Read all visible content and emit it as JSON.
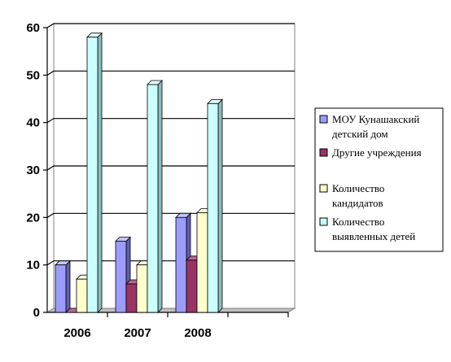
{
  "chart_data": {
    "type": "bar",
    "categories": [
      "2006",
      "2007",
      "2008"
    ],
    "series": [
      {
        "name": "МОУ Кунашакский детский дом",
        "legend_lines": [
          "МОУ Кунашакский",
          "детский дом"
        ],
        "values": [
          10,
          15,
          20
        ],
        "color": "#9c9cff",
        "side": "#5f5fb3",
        "top": "#c4c4ff"
      },
      {
        "name": "Другие учреждения",
        "legend_lines": [
          "Другие учреждения"
        ],
        "values": [
          0,
          6,
          11
        ],
        "color": "#993366",
        "side": "#5e1f3f",
        "top": "#b86690"
      },
      {
        "name": "Количество кандидатов",
        "legend_lines": [
          "Количество",
          "кандидатов"
        ],
        "values": [
          7,
          10,
          21
        ],
        "color": "#ffffcc",
        "side": "#bdbd8a",
        "top": "#ffffe6"
      },
      {
        "name": "Количество выявленных детей",
        "legend_lines": [
          "Количество",
          "выявленных детей"
        ],
        "values": [
          58,
          48,
          44
        ],
        "color": "#ccffff",
        "side": "#8abdbd",
        "top": "#e6ffff"
      }
    ],
    "title": "",
    "xlabel": "",
    "ylabel": "",
    "ylim": [
      0,
      60
    ],
    "yticks": [
      0,
      10,
      20,
      30,
      40,
      50,
      60
    ],
    "grid": true,
    "legend_position": "right"
  }
}
